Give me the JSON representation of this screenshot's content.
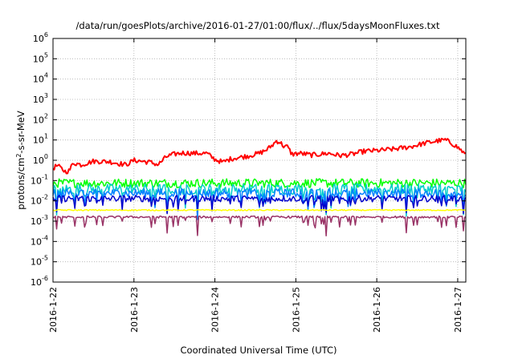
{
  "chart_data": {
    "type": "line",
    "title": "/data/run/goesPlots/archive/2016-01-27/01:00/flux/../flux/5daysMoonFluxes.txt",
    "xlabel": "Coordinated Universal Time (UTC)",
    "ylabel": {
      "prefix": "protons/cm",
      "sup": "2",
      "suffix": "-s-sr-MeV"
    },
    "x_unit": "days",
    "xlim": [
      0,
      5.1
    ],
    "y_scale": "log",
    "ylim_exp": [
      -6,
      6
    ],
    "y_ticks": [
      {
        "base": "10",
        "exp": "-6",
        "value": -6
      },
      {
        "base": "10",
        "exp": "-5",
        "value": -5
      },
      {
        "base": "10",
        "exp": "-4",
        "value": -4
      },
      {
        "base": "10",
        "exp": "-3",
        "value": -3
      },
      {
        "base": "10",
        "exp": "-2",
        "value": -2
      },
      {
        "base": "10",
        "exp": "-1",
        "value": -1
      },
      {
        "base": "10",
        "exp": "0",
        "value": 0
      },
      {
        "base": "10",
        "exp": "1",
        "value": 1
      },
      {
        "base": "10",
        "exp": "2",
        "value": 2
      },
      {
        "base": "10",
        "exp": "3",
        "value": 3
      },
      {
        "base": "10",
        "exp": "4",
        "value": 4
      },
      {
        "base": "10",
        "exp": "5",
        "value": 5
      },
      {
        "base": "10",
        "exp": "6",
        "value": 6
      }
    ],
    "x_ticks": [
      {
        "label": "2016-1-22",
        "value": 0
      },
      {
        "label": "2016-1-23",
        "value": 1
      },
      {
        "label": "2016-1-24",
        "value": 2
      },
      {
        "label": "2016-1-25",
        "value": 3
      },
      {
        "label": "2016-1-26",
        "value": 4
      },
      {
        "label": "2016-1-27",
        "value": 5
      }
    ],
    "grid": true,
    "series": [
      {
        "color": "#ff0000",
        "base": [
          [
            0.0,
            0.4
          ],
          [
            0.05,
            0.55
          ],
          [
            0.1,
            0.4
          ],
          [
            0.15,
            0.28
          ],
          [
            0.2,
            0.3
          ],
          [
            0.25,
            0.75
          ],
          [
            0.35,
            0.6
          ],
          [
            0.5,
            0.9
          ],
          [
            0.7,
            0.85
          ],
          [
            0.9,
            0.6
          ],
          [
            1.0,
            1.0
          ],
          [
            1.2,
            0.8
          ],
          [
            1.3,
            0.6
          ],
          [
            1.4,
            1.5
          ],
          [
            1.5,
            2.0
          ],
          [
            1.6,
            2.3
          ],
          [
            1.75,
            2.2
          ],
          [
            1.9,
            2.2
          ],
          [
            2.0,
            1.1
          ],
          [
            2.1,
            0.8
          ],
          [
            2.2,
            1.2
          ],
          [
            2.4,
            1.6
          ],
          [
            2.55,
            2.2
          ],
          [
            2.65,
            3.5
          ],
          [
            2.72,
            6.0
          ],
          [
            2.76,
            9.0
          ],
          [
            2.8,
            8.0
          ],
          [
            2.85,
            5.0
          ],
          [
            2.9,
            4.5
          ],
          [
            2.95,
            2.0
          ],
          [
            3.05,
            2.2
          ],
          [
            3.2,
            1.8
          ],
          [
            3.4,
            2.2
          ],
          [
            3.55,
            1.7
          ],
          [
            3.7,
            2.0
          ],
          [
            3.85,
            2.8
          ],
          [
            4.0,
            3.0
          ],
          [
            4.2,
            3.5
          ],
          [
            4.4,
            4.5
          ],
          [
            4.6,
            7.0
          ],
          [
            4.75,
            9.0
          ],
          [
            4.85,
            10.0
          ],
          [
            4.95,
            6.0
          ],
          [
            5.03,
            3.5
          ],
          [
            5.1,
            1.8
          ]
        ],
        "noise": 0.12,
        "width": 2.0
      },
      {
        "color": "#00ff00",
        "level": 0.075,
        "noise": 0.22,
        "dip": 0.0,
        "width": 1.5
      },
      {
        "color": "#00cccc",
        "level": 0.038,
        "noise": 0.26,
        "dip": 0.55,
        "width": 1.5
      },
      {
        "color": "#0080ff",
        "level": 0.024,
        "noise": 0.22,
        "dip": 0.45,
        "width": 1.5
      },
      {
        "color": "#0000cc",
        "level": 0.013,
        "noise": 0.16,
        "dip": 0.35,
        "width": 1.5
      },
      {
        "color": "#ffff00",
        "level": 0.0035,
        "noise": 0.03,
        "dip": 0.0,
        "width": 1.5
      },
      {
        "color": "#993366",
        "level": 0.0016,
        "noise": 0.05,
        "dip": 0.35,
        "width": 1.5
      }
    ]
  }
}
